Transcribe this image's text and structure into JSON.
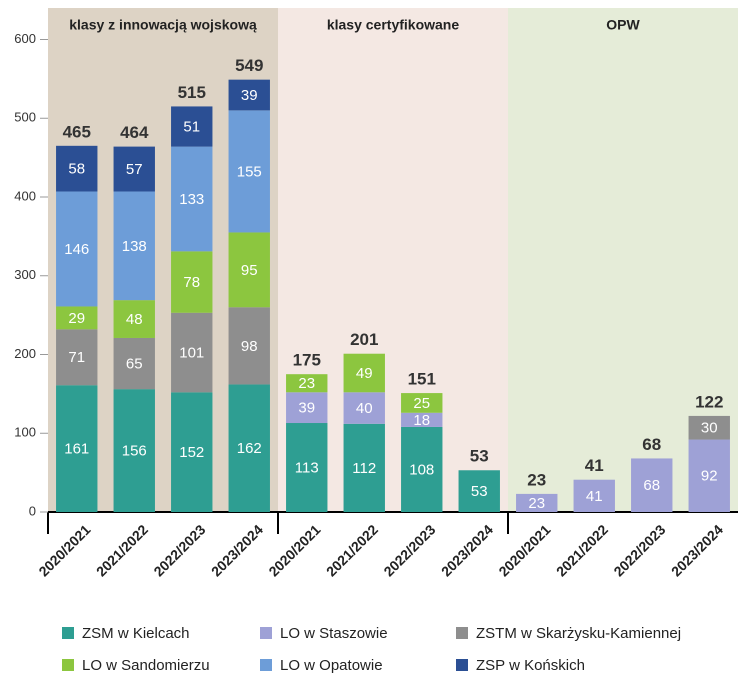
{
  "chart_data": {
    "type": "stacked-bar",
    "groups": [
      {
        "title": "klasy z innowacją wojskową",
        "color": "#ddd3c5",
        "categories": [
          "2020/2021",
          "2021/2022",
          "2022/2023",
          "2023/2024"
        ]
      },
      {
        "title": "klasy certyfikowane",
        "color": "#f4e8e3",
        "categories": [
          "2020/2021",
          "2021/2022",
          "2022/2023",
          "2023/2024"
        ]
      },
      {
        "title": "OPW",
        "color": "#e5ecd8",
        "categories": [
          "2020/2021",
          "2021/2022",
          "2022/2023",
          "2023/2024"
        ]
      }
    ],
    "series": [
      {
        "name": "ZSM w Kielcach",
        "color": "#2e9e92",
        "values": [
          161,
          156,
          152,
          162,
          113,
          112,
          108,
          53,
          null,
          null,
          null,
          null
        ]
      },
      {
        "name": "LO w Staszowie",
        "color": "#9ea1d6",
        "values": [
          null,
          null,
          null,
          null,
          39,
          40,
          18,
          null,
          23,
          41,
          68,
          92
        ]
      },
      {
        "name": "ZSTM w Skarżysku-Kamiennej",
        "color": "#8e8e8e",
        "values": [
          71,
          65,
          101,
          98,
          null,
          null,
          null,
          null,
          null,
          null,
          null,
          30
        ]
      },
      {
        "name": "LO w Sandomierzu",
        "color": "#8cc63f",
        "values": [
          29,
          48,
          78,
          95,
          23,
          49,
          25,
          null,
          null,
          null,
          null,
          null
        ]
      },
      {
        "name": "LO w Opatowie",
        "color": "#6d9dd8",
        "values": [
          146,
          138,
          133,
          155,
          null,
          null,
          null,
          null,
          null,
          null,
          null,
          null
        ]
      },
      {
        "name": "ZSP w Końskich",
        "color": "#2b4f94",
        "values": [
          58,
          57,
          51,
          39,
          null,
          null,
          null,
          null,
          null,
          null,
          null,
          null
        ]
      }
    ],
    "totals": [
      465,
      464,
      515,
      549,
      175,
      201,
      151,
      53,
      23,
      41,
      68,
      122
    ],
    "ylim": [
      0,
      640
    ],
    "yticks": [
      0,
      100,
      200,
      300,
      400,
      500,
      600
    ],
    "grid": false,
    "legend": "bottom"
  }
}
